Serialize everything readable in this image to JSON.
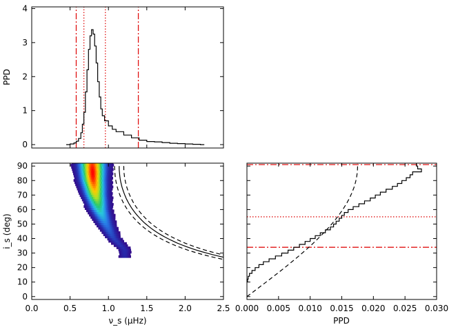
{
  "colors": {
    "axis": "#000000",
    "reference_lines": "#e01010",
    "heatmap_low": "#3a007a",
    "heatmap_high": "#ff0000"
  },
  "chart_data": [
    {
      "id": "top",
      "type": "histogram",
      "xlabel": "",
      "ylabel": "PPD",
      "xlim": [
        0.0,
        2.5
      ],
      "ylim": [
        -0.1,
        4.05
      ],
      "ytick_values": [
        0,
        1,
        2,
        3,
        4
      ],
      "ytick_labels": [
        "0",
        "1",
        "2",
        "3",
        "4"
      ],
      "series": [
        {
          "x": [
            0.45,
            0.5,
            0.55,
            0.58,
            0.61,
            0.64,
            0.66,
            0.68,
            0.7,
            0.72,
            0.74,
            0.76,
            0.78,
            0.8,
            0.82,
            0.84,
            0.86,
            0.88,
            0.9,
            0.92,
            0.95,
            1.0,
            1.05,
            1.1,
            1.2,
            1.3,
            1.4,
            1.5,
            1.6,
            1.7,
            1.8,
            1.9,
            2.0,
            2.1,
            2.2
          ],
          "y": [
            0.0,
            0.02,
            0.05,
            0.1,
            0.18,
            0.35,
            0.6,
            0.95,
            1.55,
            2.2,
            2.8,
            3.2,
            3.38,
            3.25,
            2.9,
            2.4,
            1.85,
            1.4,
            1.05,
            0.85,
            0.7,
            0.55,
            0.45,
            0.38,
            0.28,
            0.2,
            0.13,
            0.09,
            0.08,
            0.06,
            0.04,
            0.03,
            0.02,
            0.01,
            0.0
          ]
        }
      ],
      "vlines": [
        {
          "x": 0.58,
          "style": "dash-dot"
        },
        {
          "x": 0.68,
          "style": "dotted"
        },
        {
          "x": 0.96,
          "style": "dotted"
        },
        {
          "x": 1.39,
          "style": "dash-dot"
        }
      ]
    },
    {
      "id": "main",
      "type": "heatmap",
      "xlabel": "ν_s (μHz)",
      "ylabel": "i_s (deg)",
      "xlim": [
        0.0,
        2.5
      ],
      "ylim": [
        -2,
        92
      ],
      "xtick_values": [
        0.0,
        0.5,
        1.0,
        1.5,
        2.0,
        2.5
      ],
      "xtick_labels": [
        "0.0",
        "0.5",
        "1.0",
        "1.5",
        "2.0",
        "2.5"
      ],
      "ytick_values": [
        0,
        10,
        20,
        30,
        40,
        50,
        60,
        70,
        80,
        90
      ],
      "ytick_labels": [
        "0",
        "10",
        "20",
        "30",
        "40",
        "50",
        "60",
        "70",
        "80",
        "90"
      ],
      "ridge": {
        "y": [
          90,
          80,
          70,
          60,
          50,
          40,
          32
        ],
        "x": [
          0.78,
          0.79,
          0.82,
          0.87,
          0.95,
          1.05,
          1.2
        ],
        "peak_y": 85
      },
      "curves": [
        {
          "style": "dashed",
          "k": 1.08
        },
        {
          "style": "solid",
          "k": 1.14
        },
        {
          "style": "dashed",
          "k": 1.2
        }
      ]
    },
    {
      "id": "right",
      "type": "step",
      "xlabel": "PPD",
      "ylabel": "",
      "xlim": [
        0.0,
        0.03
      ],
      "ylim": [
        -2,
        92
      ],
      "xtick_values": [
        0.0,
        0.005,
        0.01,
        0.015,
        0.02,
        0.025,
        0.03
      ],
      "xtick_labels": [
        "0.000",
        "0.005",
        "0.010",
        "0.015",
        "0.020",
        "0.025",
        "0.030"
      ],
      "series": [
        {
          "y": [
            10,
            12,
            14,
            16,
            18,
            20,
            22,
            24,
            26,
            28,
            30,
            32,
            34,
            36,
            38,
            40,
            42,
            44,
            46,
            48,
            50,
            52,
            54,
            56,
            58,
            60,
            62,
            64,
            66,
            68,
            70,
            72,
            74,
            76,
            78,
            80,
            82,
            84,
            86,
            88,
            90
          ],
          "x": [
            0.0001,
            0.0002,
            0.0004,
            0.0008,
            0.0013,
            0.0019,
            0.0026,
            0.0035,
            0.0045,
            0.0055,
            0.0065,
            0.0074,
            0.0083,
            0.0092,
            0.01,
            0.0108,
            0.0116,
            0.0124,
            0.0132,
            0.0137,
            0.0141,
            0.0146,
            0.015,
            0.0154,
            0.016,
            0.0168,
            0.0177,
            0.0186,
            0.0195,
            0.0203,
            0.0211,
            0.022,
            0.023,
            0.0238,
            0.0245,
            0.0252,
            0.0258,
            0.0262,
            0.0276,
            0.027,
            0.0268
          ]
        }
      ],
      "reference_curve": {
        "style": "dashed",
        "form": "sin",
        "amplitude": 0.0175
      },
      "hlines": [
        {
          "y": 34,
          "style": "dash-dot"
        },
        {
          "y": 55,
          "style": "dotted"
        },
        {
          "y": 91,
          "style": "dash-dot"
        }
      ]
    }
  ]
}
